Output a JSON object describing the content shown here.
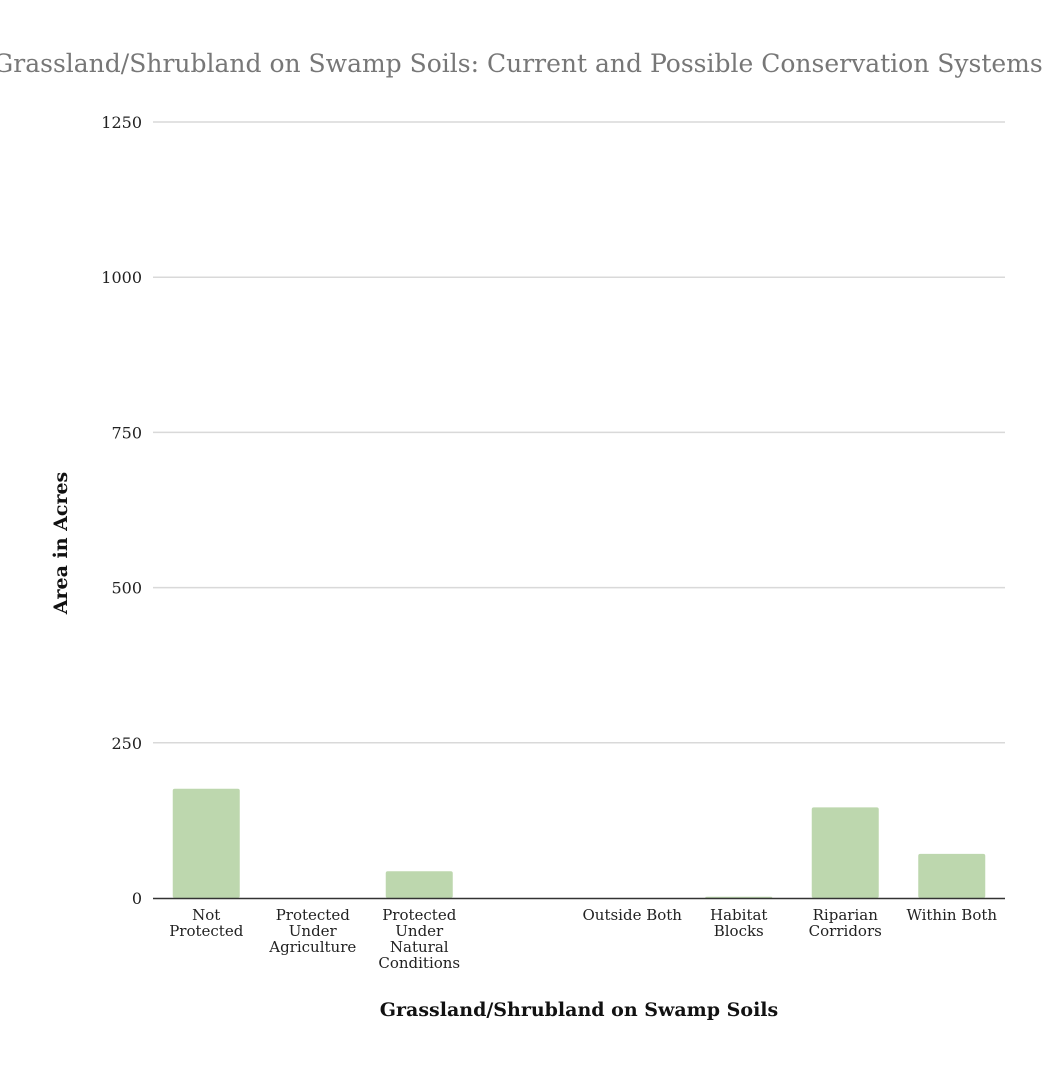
{
  "chart_data": {
    "type": "bar",
    "title": "Grassland/Shrubland on Swamp Soils: Current and Possible Conservation Systems",
    "xlabel": "Grassland/Shrubland on Swamp Soils",
    "ylabel": "Area in Acres",
    "ylim": [
      0,
      1250
    ],
    "yticks": [
      "0",
      "250",
      "500",
      "750",
      "1000",
      "1250"
    ],
    "grid": true,
    "legend": "none",
    "categories": [
      [
        "Not",
        "Protected"
      ],
      [
        "Protected",
        "Under",
        "Agriculture"
      ],
      [
        "Protected",
        "Under",
        "Natural",
        "Conditions"
      ],
      [],
      [
        "Outside Both"
      ],
      [
        "Habitat",
        "Blocks"
      ],
      [
        "Riparian",
        "Corridors"
      ],
      [
        "Within Both"
      ]
    ],
    "values": [
      176,
      0,
      43,
      null,
      0,
      2,
      146,
      71
    ],
    "colors": {
      "bar": "#bdd7ae",
      "grid": "#d9d9d9",
      "axis": "#333333",
      "title": "#777777"
    }
  }
}
